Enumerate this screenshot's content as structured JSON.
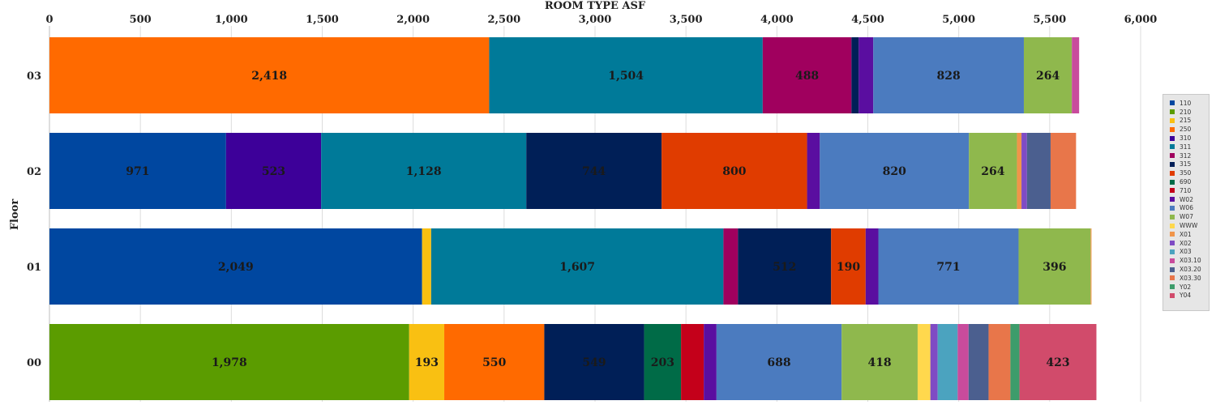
{
  "chart_data": {
    "type": "bar",
    "orientation": "horizontal",
    "stacked": true,
    "xlabel": "ROOM TYPE ASF",
    "ylabel": "Floor",
    "xlim": [
      0,
      6000
    ],
    "x_ticks": [
      "0",
      "500",
      "1,000",
      "1,500",
      "2,000",
      "2,500",
      "3,000",
      "3,500",
      "4,000",
      "4,500",
      "5,000",
      "5,500",
      "6,000"
    ],
    "grid": true,
    "legend_position": "right",
    "categories": [
      "03",
      "02",
      "01",
      "00"
    ],
    "series": [
      {
        "name": "110",
        "color": "#0047a0",
        "values": [
          0,
          971,
          2049,
          0
        ]
      },
      {
        "name": "210",
        "color": "#5b9c00",
        "values": [
          0,
          0,
          0,
          1978
        ]
      },
      {
        "name": "215",
        "color": "#f9c012",
        "values": [
          0,
          0,
          50,
          193
        ]
      },
      {
        "name": "250",
        "color": "#ff6a00",
        "values": [
          2418,
          0,
          0,
          550
        ]
      },
      {
        "name": "310",
        "color": "#3d0099",
        "values": [
          0,
          523,
          0,
          0
        ]
      },
      {
        "name": "311",
        "color": "#007a99",
        "values": [
          1504,
          1128,
          1607,
          0
        ]
      },
      {
        "name": "312",
        "color": "#a0005e",
        "values": [
          488,
          0,
          80,
          0
        ]
      },
      {
        "name": "315",
        "color": "#001f57",
        "values": [
          40,
          744,
          512,
          549
        ]
      },
      {
        "name": "350",
        "color": "#e03c00",
        "values": [
          0,
          800,
          190,
          0
        ]
      },
      {
        "name": "690",
        "color": "#006b47",
        "values": [
          0,
          0,
          0,
          203
        ]
      },
      {
        "name": "710",
        "color": "#c4001a",
        "values": [
          0,
          0,
          0,
          125
        ]
      },
      {
        "name": "W02",
        "color": "#5a0ea0",
        "values": [
          80,
          70,
          70,
          70
        ]
      },
      {
        "name": "W06",
        "color": "#4b7bbf",
        "values": [
          828,
          820,
          771,
          688
        ]
      },
      {
        "name": "W07",
        "color": "#8fb84d",
        "values": [
          264,
          264,
          396,
          418
        ]
      },
      {
        "name": "WWW",
        "color": "#ffd84d",
        "values": [
          0,
          0,
          0,
          70
        ]
      },
      {
        "name": "X01",
        "color": "#f0954a",
        "values": [
          0,
          25,
          5,
          0
        ]
      },
      {
        "name": "X02",
        "color": "#7f4bc4",
        "values": [
          0,
          30,
          0,
          40
        ]
      },
      {
        "name": "X03",
        "color": "#4ba3bf",
        "values": [
          0,
          0,
          0,
          110
        ]
      },
      {
        "name": "X03.10",
        "color": "#c84b9c",
        "values": [
          40,
          0,
          0,
          60
        ]
      },
      {
        "name": "X03.20",
        "color": "#4b5f8f",
        "values": [
          0,
          130,
          0,
          110
        ]
      },
      {
        "name": "X03.30",
        "color": "#e8764a",
        "values": [
          0,
          140,
          0,
          120
        ]
      },
      {
        "name": "Y02",
        "color": "#3d9c6b",
        "values": [
          0,
          0,
          0,
          50
        ]
      },
      {
        "name": "Y04",
        "color": "#d14b6b",
        "values": [
          0,
          0,
          0,
          423
        ]
      }
    ],
    "data_labels": [
      {
        "category": "03",
        "series": "250",
        "text": "2,418"
      },
      {
        "category": "03",
        "series": "311",
        "text": "1,504"
      },
      {
        "category": "03",
        "series": "312",
        "text": "488"
      },
      {
        "category": "03",
        "series": "W06",
        "text": "828"
      },
      {
        "category": "03",
        "series": "W07",
        "text": "264"
      },
      {
        "category": "02",
        "series": "110",
        "text": "971"
      },
      {
        "category": "02",
        "series": "310",
        "text": "523"
      },
      {
        "category": "02",
        "series": "311",
        "text": "1,128"
      },
      {
        "category": "02",
        "series": "315",
        "text": "744"
      },
      {
        "category": "02",
        "series": "350",
        "text": "800"
      },
      {
        "category": "02",
        "series": "W06",
        "text": "820"
      },
      {
        "category": "02",
        "series": "W07",
        "text": "264"
      },
      {
        "category": "01",
        "series": "110",
        "text": "2,049"
      },
      {
        "category": "01",
        "series": "311",
        "text": "1,607"
      },
      {
        "category": "01",
        "series": "315",
        "text": "512"
      },
      {
        "category": "01",
        "series": "350",
        "text": "190"
      },
      {
        "category": "01",
        "series": "W06",
        "text": "771"
      },
      {
        "category": "01",
        "series": "W07",
        "text": "396"
      },
      {
        "category": "00",
        "series": "210",
        "text": "1,978"
      },
      {
        "category": "00",
        "series": "215",
        "text": "193"
      },
      {
        "category": "00",
        "series": "250",
        "text": "550"
      },
      {
        "category": "00",
        "series": "315",
        "text": "549"
      },
      {
        "category": "00",
        "series": "690",
        "text": "203"
      },
      {
        "category": "00",
        "series": "W06",
        "text": "688"
      },
      {
        "category": "00",
        "series": "W07",
        "text": "418"
      },
      {
        "category": "00",
        "series": "Y04",
        "text": "423"
      }
    ]
  }
}
